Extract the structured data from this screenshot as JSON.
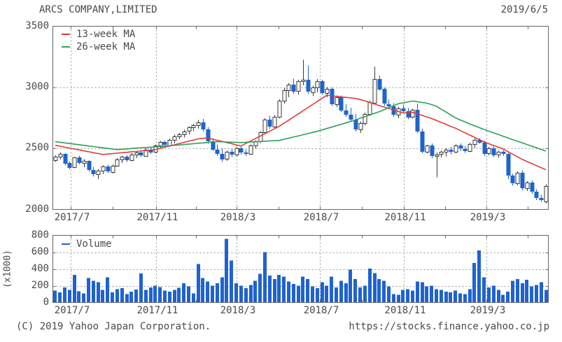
{
  "header": {
    "title": "ARCS COMPANY,LIMITED",
    "date": "2019/6/5"
  },
  "footer": {
    "copyright": "(C) 2019 Yahoo Japan Corporation.",
    "url": "https://stocks.finance.yahoo.co.jp"
  },
  "colors": {
    "up_fill": "#ffffff",
    "up_border": "#3a3a3a",
    "down": "#1e63d0",
    "ma13": "#e03a3a",
    "ma26": "#2ba158",
    "volume": "#1e63d0",
    "grid": "#9a9a9a",
    "axis": "#666666",
    "text": "#4a4a4a"
  },
  "chart_data": [
    {
      "type": "candlestick",
      "symbol": "ARCS COMPANY,LIMITED",
      "interval": "weekly",
      "start_week": "2017-06-12",
      "ylim": [
        2000,
        3500
      ],
      "y_ticks": [
        2000,
        2500,
        3000,
        3500
      ],
      "x_major_ticks": [
        {
          "pos": 3.3,
          "label": "2017/7"
        },
        {
          "pos": 21.1,
          "label": "2017/11"
        },
        {
          "pos": 38.1,
          "label": "2018/3"
        },
        {
          "pos": 55.5,
          "label": "2018/7"
        },
        {
          "pos": 73.2,
          "label": "2018/11"
        },
        {
          "pos": 90.5,
          "label": "2019/3"
        }
      ],
      "x_minor_ticks": [
        12.0,
        29.6,
        46.8,
        64.3,
        81.9,
        99.2
      ],
      "legend": [
        {
          "label": "13-week MA",
          "color": "#e03a3a"
        },
        {
          "label": "26-week MA",
          "color": "#2ba158"
        }
      ],
      "ohlc": [
        [
          2405,
          2445,
          2390,
          2432
        ],
        [
          2432,
          2468,
          2408,
          2455
        ],
        [
          2455,
          2460,
          2360,
          2372
        ],
        [
          2380,
          2395,
          2330,
          2342
        ],
        [
          2342,
          2430,
          2338,
          2424
        ],
        [
          2424,
          2440,
          2370,
          2380
        ],
        [
          2380,
          2412,
          2345,
          2398
        ],
        [
          2398,
          2400,
          2310,
          2325
        ],
        [
          2325,
          2350,
          2268,
          2288
        ],
        [
          2288,
          2330,
          2250,
          2318
        ],
        [
          2318,
          2362,
          2290,
          2352
        ],
        [
          2352,
          2365,
          2298,
          2310
        ],
        [
          2310,
          2370,
          2295,
          2360
        ],
        [
          2360,
          2420,
          2348,
          2410
        ],
        [
          2410,
          2442,
          2380,
          2432
        ],
        [
          2432,
          2445,
          2388,
          2402
        ],
        [
          2402,
          2462,
          2395,
          2450
        ],
        [
          2450,
          2478,
          2420,
          2465
        ],
        [
          2465,
          2482,
          2428,
          2442
        ],
        [
          2442,
          2502,
          2435,
          2492
        ],
        [
          2492,
          2512,
          2455,
          2470
        ],
        [
          2470,
          2532,
          2460,
          2522
        ],
        [
          2522,
          2562,
          2500,
          2550
        ],
        [
          2550,
          2565,
          2508,
          2525
        ],
        [
          2525,
          2582,
          2515,
          2572
        ],
        [
          2572,
          2612,
          2540,
          2600
        ],
        [
          2600,
          2628,
          2575,
          2618
        ],
        [
          2618,
          2652,
          2590,
          2640
        ],
        [
          2640,
          2682,
          2615,
          2670
        ],
        [
          2670,
          2702,
          2640,
          2688
        ],
        [
          2688,
          2732,
          2660,
          2712
        ],
        [
          2712,
          2742,
          2638,
          2655
        ],
        [
          2655,
          2672,
          2538,
          2560
        ],
        [
          2560,
          2582,
          2478,
          2492
        ],
        [
          2492,
          2532,
          2438,
          2455
        ],
        [
          2455,
          2502,
          2388,
          2412
        ],
        [
          2412,
          2482,
          2398,
          2470
        ],
        [
          2470,
          2495,
          2428,
          2448
        ],
        [
          2448,
          2512,
          2435,
          2502
        ],
        [
          2502,
          2515,
          2448,
          2465
        ],
        [
          2465,
          2492,
          2438,
          2452
        ],
        [
          2452,
          2532,
          2446,
          2522
        ],
        [
          2522,
          2568,
          2498,
          2558
        ],
        [
          2558,
          2642,
          2545,
          2630
        ],
        [
          2630,
          2748,
          2618,
          2735
        ],
        [
          2735,
          2768,
          2658,
          2680
        ],
        [
          2680,
          2772,
          2668,
          2758
        ],
        [
          2758,
          2902,
          2748,
          2890
        ],
        [
          2890,
          2992,
          2868,
          2975
        ],
        [
          2975,
          3032,
          2918,
          3020
        ],
        [
          3020,
          3072,
          2948,
          2965
        ],
        [
          2965,
          3062,
          2938,
          3048
        ],
        [
          3048,
          3225,
          3015,
          3060
        ],
        [
          3060,
          3180,
          2948,
          2962
        ],
        [
          2962,
          3012,
          2928,
          3000
        ],
        [
          3000,
          3068,
          2958,
          3052
        ],
        [
          3052,
          3062,
          2938,
          2955
        ],
        [
          2955,
          3002,
          2918,
          2990
        ],
        [
          2990,
          3000,
          2848,
          2862
        ],
        [
          2862,
          2932,
          2838,
          2920
        ],
        [
          2920,
          2932,
          2798,
          2812
        ],
        [
          2812,
          2862,
          2758,
          2775
        ],
        [
          2775,
          2832,
          2718,
          2735
        ],
        [
          2735,
          2782,
          2638,
          2652
        ],
        [
          2652,
          2722,
          2628,
          2705
        ],
        [
          2705,
          2792,
          2688,
          2782
        ],
        [
          2782,
          2892,
          2768,
          2878
        ],
        [
          2878,
          3167,
          2868,
          3070
        ],
        [
          3070,
          3095,
          2972,
          2985
        ],
        [
          2985,
          3000,
          2848,
          2862
        ],
        [
          2862,
          2900,
          2828,
          2845
        ],
        [
          2845,
          2870,
          2758,
          2778
        ],
        [
          2778,
          2842,
          2748,
          2828
        ],
        [
          2828,
          2860,
          2788,
          2805
        ],
        [
          2805,
          2830,
          2738,
          2755
        ],
        [
          2755,
          2825,
          2746,
          2815
        ],
        [
          2815,
          2868,
          2625,
          2640
        ],
        [
          2640,
          2660,
          2460,
          2472
        ],
        [
          2472,
          2530,
          2458,
          2522
        ],
        [
          2522,
          2540,
          2420,
          2438
        ],
        [
          2438,
          2468,
          2264,
          2452
        ],
        [
          2452,
          2482,
          2426,
          2470
        ],
        [
          2470,
          2502,
          2436,
          2490
        ],
        [
          2490,
          2512,
          2448,
          2472
        ],
        [
          2472,
          2532,
          2462,
          2522
        ],
        [
          2522,
          2542,
          2478,
          2498
        ],
        [
          2498,
          2522,
          2465,
          2480
        ],
        [
          2480,
          2548,
          2470,
          2538
        ],
        [
          2538,
          2582,
          2505,
          2570
        ],
        [
          2570,
          2585,
          2538,
          2548
        ],
        [
          2548,
          2560,
          2438,
          2458
        ],
        [
          2458,
          2512,
          2445,
          2500
        ],
        [
          2500,
          2515,
          2428,
          2445
        ],
        [
          2445,
          2482,
          2425,
          2470
        ],
        [
          2470,
          2485,
          2438,
          2455
        ],
        [
          2455,
          2465,
          2248,
          2280
        ],
        [
          2280,
          2292,
          2195,
          2215
        ],
        [
          2215,
          2312,
          2198,
          2300
        ],
        [
          2300,
          2322,
          2158,
          2175
        ],
        [
          2175,
          2232,
          2152,
          2222
        ],
        [
          2222,
          2238,
          2128,
          2145
        ],
        [
          2145,
          2165,
          2078,
          2095
        ],
        [
          2095,
          2120,
          2062,
          2075
        ],
        [
          2062,
          2205,
          2050,
          2190
        ]
      ],
      "ma13": [
        2525,
        2518,
        2510,
        2503,
        2495,
        2488,
        2480,
        2473,
        2465,
        2458,
        2450,
        2454,
        2457,
        2461,
        2465,
        2468,
        2472,
        2475,
        2479,
        2483,
        2486,
        2490,
        2500,
        2510,
        2519,
        2529,
        2539,
        2549,
        2559,
        2568,
        2578,
        2582,
        2585,
        2576,
        2566,
        2557,
        2548,
        2539,
        2529,
        2520,
        2540,
        2560,
        2580,
        2600,
        2620,
        2640,
        2660,
        2680,
        2706,
        2731,
        2757,
        2782,
        2808,
        2833,
        2859,
        2884,
        2910,
        2935,
        2931,
        2926,
        2922,
        2918,
        2913,
        2909,
        2900,
        2888,
        2876,
        2863,
        2851,
        2839,
        2827,
        2815,
        2802,
        2790,
        2793,
        2795,
        2783,
        2770,
        2758,
        2745,
        2729,
        2713,
        2697,
        2681,
        2665,
        2646,
        2628,
        2609,
        2590,
        2572,
        2553,
        2538,
        2524,
        2510,
        2495,
        2474,
        2453,
        2431,
        2410,
        2393,
        2376,
        2359,
        2342,
        2325
      ],
      "ma26": [
        2555,
        2550,
        2545,
        2540,
        2535,
        2530,
        2525,
        2520,
        2515,
        2510,
        2505,
        2500,
        2495,
        2490,
        2493,
        2496,
        2499,
        2502,
        2505,
        2507,
        2510,
        2513,
        2516,
        2519,
        2522,
        2525,
        2528,
        2532,
        2535,
        2538,
        2542,
        2545,
        2548,
        2552,
        2555,
        2554,
        2552,
        2551,
        2549,
        2548,
        2550,
        2552,
        2554,
        2556,
        2559,
        2561,
        2563,
        2565,
        2574,
        2584,
        2593,
        2602,
        2612,
        2621,
        2631,
        2640,
        2651,
        2663,
        2674,
        2686,
        2697,
        2709,
        2720,
        2733,
        2747,
        2760,
        2773,
        2787,
        2800,
        2816,
        2833,
        2849,
        2865,
        2873,
        2880,
        2888,
        2882,
        2876,
        2870,
        2858,
        2845,
        2821,
        2798,
        2774,
        2750,
        2733,
        2717,
        2700,
        2685,
        2670,
        2655,
        2641,
        2627,
        2614,
        2600,
        2586,
        2572,
        2559,
        2545,
        2532,
        2518,
        2505,
        2491,
        2478
      ]
    },
    {
      "type": "bar",
      "name": "Volume",
      "unit_label": "(x1000)",
      "ylim": [
        0,
        800
      ],
      "y_ticks": [
        0,
        200,
        400,
        600,
        800
      ],
      "legend": [
        {
          "label": "Volume",
          "color": "#1e63d0"
        }
      ],
      "values": [
        140,
        120,
        180,
        150,
        330,
        135,
        110,
        290,
        260,
        240,
        150,
        300,
        120,
        160,
        170,
        100,
        130,
        155,
        345,
        150,
        180,
        200,
        185,
        140,
        130,
        150,
        175,
        230,
        190,
        110,
        460,
        290,
        250,
        200,
        230,
        300,
        760,
        500,
        230,
        200,
        170,
        210,
        260,
        340,
        600,
        320,
        280,
        330,
        310,
        250,
        220,
        200,
        310,
        280,
        190,
        170,
        240,
        200,
        310,
        180,
        260,
        230,
        390,
        280,
        180,
        200,
        405,
        350,
        280,
        260,
        190,
        100,
        90,
        150,
        160,
        140,
        250,
        240,
        190,
        200,
        160,
        150,
        130,
        120,
        140,
        110,
        100,
        160,
        470,
        620,
        300,
        180,
        200,
        150,
        90,
        130,
        260,
        280,
        230,
        270,
        190,
        210,
        240,
        150
      ]
    }
  ]
}
